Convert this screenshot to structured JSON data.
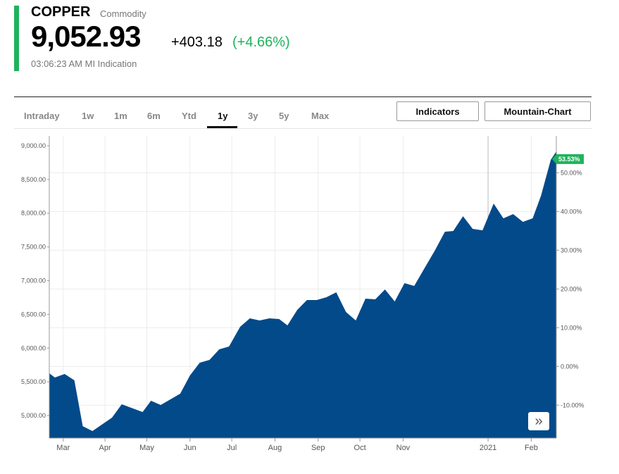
{
  "header": {
    "name": "COPPER",
    "type": "Commodity",
    "price": "9,052.93",
    "change": "+403.18",
    "change_pct": "(+4.66%)",
    "timestamp": "03:06:23 AM MI Indication",
    "accent_color": "#1fb35c"
  },
  "tabs": [
    {
      "label": "Intraday"
    },
    {
      "label": "1w"
    },
    {
      "label": "1m"
    },
    {
      "label": "6m"
    },
    {
      "label": "Ytd"
    },
    {
      "label": "1y",
      "active": true
    },
    {
      "label": "3y"
    },
    {
      "label": "5y"
    },
    {
      "label": "Max"
    }
  ],
  "buttons": {
    "indicators": "Indicators",
    "chart_type": "Mountain-Chart",
    "forward_icon": "double-chevron-right"
  },
  "chart_data": {
    "type": "area",
    "fill_color": "#034a8a",
    "grid": true,
    "x": [
      "2020-02-21",
      "2020-02-25",
      "2020-03-03",
      "2020-03-10",
      "2020-03-16",
      "2020-03-23",
      "2020-04-06",
      "2020-04-13",
      "2020-04-28",
      "2020-05-04",
      "2020-05-11",
      "2020-05-25",
      "2020-06-01",
      "2020-06-08",
      "2020-06-15",
      "2020-06-22",
      "2020-06-29",
      "2020-07-07",
      "2020-07-14",
      "2020-07-21",
      "2020-07-28",
      "2020-08-04",
      "2020-08-10",
      "2020-08-17",
      "2020-08-24",
      "2020-08-31",
      "2020-09-07",
      "2020-09-14",
      "2020-09-21",
      "2020-09-28",
      "2020-10-05",
      "2020-10-12",
      "2020-10-19",
      "2020-10-26",
      "2020-11-02",
      "2020-11-09",
      "2020-11-16",
      "2020-11-24",
      "2020-12-01",
      "2020-12-07",
      "2020-12-14",
      "2020-12-21",
      "2020-12-28",
      "2021-01-05",
      "2021-01-12",
      "2021-01-19",
      "2021-01-26",
      "2021-02-02",
      "2021-02-08",
      "2021-02-15",
      "2021-02-19"
    ],
    "values": [
      5627,
      5564,
      5616,
      5522,
      4843,
      4770,
      4969,
      5167,
      5052,
      5219,
      5157,
      5324,
      5595,
      5783,
      5825,
      5982,
      6024,
      6316,
      6441,
      6410,
      6441,
      6431,
      6337,
      6567,
      6713,
      6713,
      6755,
      6828,
      6535,
      6410,
      6734,
      6723,
      6869,
      6692,
      6963,
      6922,
      7172,
      7454,
      7726,
      7736,
      7956,
      7768,
      7747,
      8144,
      7924,
      7987,
      7872,
      7924,
      8258,
      8791,
      8916
    ],
    "x_ticks": [
      {
        "label": "Mar",
        "date": "2020-03-02"
      },
      {
        "label": "Apr",
        "date": "2020-04-01"
      },
      {
        "label": "May",
        "date": "2020-05-01"
      },
      {
        "label": "Jun",
        "date": "2020-06-01"
      },
      {
        "label": "Jul",
        "date": "2020-07-01"
      },
      {
        "label": "Aug",
        "date": "2020-08-01"
      },
      {
        "label": "Sep",
        "date": "2020-09-01"
      },
      {
        "label": "Oct",
        "date": "2020-10-01"
      },
      {
        "label": "Nov",
        "date": "2020-11-01"
      },
      {
        "label": "2021",
        "date": "2021-01-01"
      },
      {
        "label": "Feb",
        "date": "2021-02-01"
      }
    ],
    "xlim": [
      "2020-02-21",
      "2021-02-19"
    ],
    "y_left": {
      "ylim": [
        4666,
        9146
      ],
      "ticks": [
        9000,
        8500,
        8000,
        7500,
        7000,
        6500,
        6000,
        5500,
        5000
      ],
      "tick_labels": [
        "9,000.00",
        "8,500.00",
        "8,000.00",
        "7,500.00",
        "7,000.00",
        "6,500.00",
        "6,000.00",
        "5,500.00",
        "5,000.00"
      ]
    },
    "y_right": {
      "ylim": [
        -18.5,
        59.5
      ],
      "ticks": [
        50,
        40,
        30,
        20,
        10,
        0,
        -10
      ],
      "tick_labels": [
        "50.00%",
        "40.00%",
        "30.00%",
        "20.00%",
        "10.00%",
        "0.00%",
        "-10.00%"
      ]
    },
    "current_change_label": "53.53%",
    "current_change_value": 53.53,
    "badge_color": "#1fb35c"
  }
}
